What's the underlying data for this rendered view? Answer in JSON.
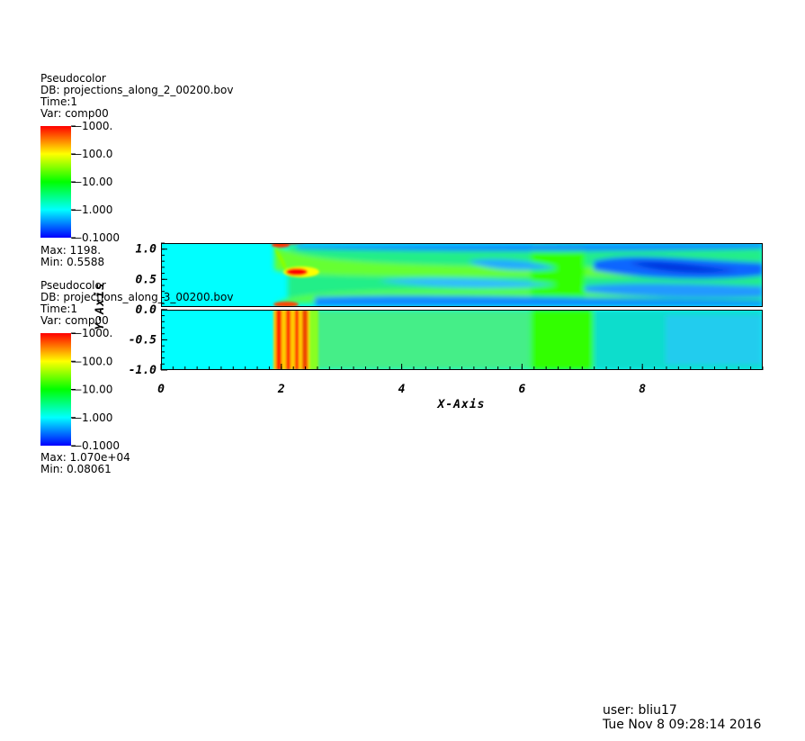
{
  "legend_top": {
    "plot_type": "Pseudocolor",
    "db": "DB: projections_along_2_00200.bov",
    "time": "Time:1",
    "var": "Var: comp00",
    "ticks": [
      "1000.",
      "100.0",
      "10.00",
      "1.000",
      "0.1000"
    ],
    "max": "Max: 1198.",
    "min": "Min: 0.5588"
  },
  "legend_bottom": {
    "plot_type": "Pseudocolor",
    "db": "DB: projections_along_3_00200.bov",
    "time": "Time:1",
    "var": "Var: comp00",
    "ticks": [
      "1000.",
      "100.0",
      "10.00",
      "1.000",
      "0.1000"
    ],
    "max": "Max: 1.070e+04",
    "min": "Min: 0.08061"
  },
  "chart_data": {
    "type": "heatmap",
    "xlabel": "X-Axis",
    "ylabel": "Y-Axis",
    "xlim": [
      0,
      10
    ],
    "ylim": [
      -1,
      1.1
    ],
    "x_ticks": [
      "0",
      "2",
      "4",
      "6",
      "8"
    ],
    "y_ticks": [
      "1.0",
      "0.5",
      "0.0",
      "-0.5",
      "-1.0"
    ],
    "x_tick_values": [
      0,
      2,
      4,
      6,
      8
    ],
    "y_tick_values": [
      1.0,
      0.5,
      0.0,
      -0.5,
      -1.0
    ],
    "color_scale": "log",
    "colormap": [
      "#0000ff",
      "#00ffff",
      "#00ff00",
      "#ffff00",
      "#ff0000"
    ],
    "grid": false
  },
  "footer": {
    "user": "user: bliu17",
    "date": "Tue Nov  8 09:28:14 2016"
  }
}
